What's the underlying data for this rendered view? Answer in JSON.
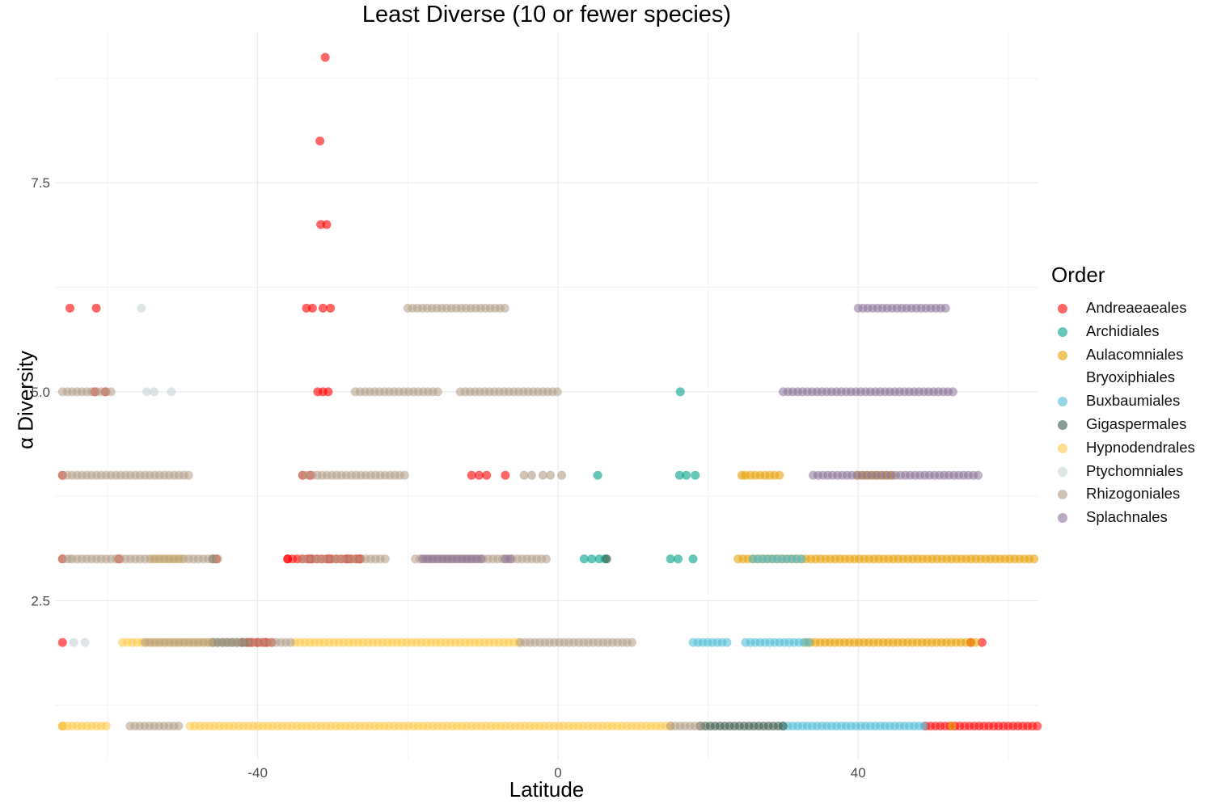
{
  "chart_data": {
    "type": "scatter",
    "title": "Least Diverse (10 or fewer species)",
    "xlabel": "Latitude",
    "ylabel": "α Diversity",
    "xlim": [
      -67,
      64
    ],
    "ylim": [
      0.6,
      9.3
    ],
    "x_ticks": [
      -40,
      0,
      40
    ],
    "x_tick_labels": [
      "-40",
      "0",
      "40"
    ],
    "y_ticks": [
      2.5,
      5.0,
      7.5
    ],
    "y_tick_labels": [
      "2.5",
      "5.0",
      "7.5"
    ],
    "grid": true,
    "legend": {
      "title": "Order",
      "position": "right",
      "entries": [
        "Andreaeaeales",
        "Archidiales",
        "Aulacomniales",
        "Bryoxiphiales",
        "Buxbaumiales",
        "Gigaspermales",
        "Hypnodendrales",
        "Ptychomniales",
        "Rhizogoniales",
        "Splachnales"
      ]
    },
    "series": [
      {
        "name": "Andreaeaeales",
        "color": "#FF0000",
        "points": [
          [
            -31,
            9
          ],
          [
            -31.7,
            8
          ],
          [
            -31.6,
            7
          ],
          [
            -30.8,
            7
          ],
          [
            -65,
            6
          ],
          [
            -61.5,
            6
          ],
          [
            -33.5,
            6
          ],
          [
            -32.7,
            6
          ],
          [
            -31.3,
            6
          ],
          [
            -30.3,
            6
          ],
          [
            -32,
            5
          ],
          [
            -31.3,
            5
          ],
          [
            -30.6,
            5
          ],
          [
            -61.7,
            5
          ],
          [
            -60.3,
            5
          ],
          [
            -66,
            4
          ],
          [
            -34,
            4
          ],
          [
            -33,
            4
          ],
          [
            -11.5,
            4
          ],
          [
            -10.5,
            4
          ],
          [
            -9.5,
            4
          ],
          [
            -7,
            4
          ],
          [
            -66,
            3
          ],
          [
            -58.5,
            3
          ],
          [
            -45.5,
            3
          ],
          [
            -36,
            3
          ],
          [
            -33,
            3
          ],
          [
            -30.5,
            3
          ],
          [
            -28,
            3
          ],
          [
            -26.5,
            3
          ],
          [
            -66,
            2
          ],
          [
            -41,
            2
          ],
          [
            -40,
            2
          ],
          [
            -39,
            2
          ],
          [
            55,
            2
          ],
          [
            56.5,
            2
          ]
        ],
        "bands": [
          {
            "y": 3,
            "x": [
              -36,
              -26
            ]
          },
          {
            "y": 2,
            "x": [
              -42,
              -38
            ]
          },
          {
            "y": 1,
            "x": [
              49,
              64
            ]
          }
        ]
      },
      {
        "name": "Archidiales",
        "color": "#00A087",
        "points": [
          [
            16.3,
            5
          ],
          [
            5.3,
            4
          ],
          [
            16.2,
            4
          ],
          [
            17.1,
            4
          ],
          [
            18.3,
            4
          ],
          [
            3.5,
            3
          ],
          [
            4.5,
            3
          ],
          [
            5.5,
            3
          ],
          [
            6.3,
            3
          ],
          [
            15,
            3
          ],
          [
            16,
            3
          ],
          [
            18,
            3
          ]
        ],
        "bands": []
      },
      {
        "name": "Aulacomniales",
        "color": "#E69F00",
        "points": [
          [
            24.5,
            4
          ],
          [
            -66,
            1
          ],
          [
            52.5,
            1
          ]
        ],
        "bands": [
          {
            "y": 4,
            "x": [
              25,
              30
            ]
          },
          {
            "y": 4,
            "x": [
              40,
              45
            ]
          },
          {
            "y": 3,
            "x": [
              24,
              64
            ]
          },
          {
            "y": 2,
            "x": [
              33,
              56
            ]
          }
        ]
      },
      {
        "name": "Bryoxiphiales",
        "color": "#FFFFFF",
        "points": [],
        "bands": []
      },
      {
        "name": "Buxbaumiales",
        "color": "#4DBBD5",
        "points": [],
        "bands": [
          {
            "y": 3,
            "x": [
              26,
              33
            ]
          },
          {
            "y": 2,
            "x": [
              18,
              23
            ]
          },
          {
            "y": 2,
            "x": [
              25,
              34
            ]
          },
          {
            "y": 1,
            "x": [
              30,
              49
            ]
          }
        ]
      },
      {
        "name": "Gigaspermales",
        "color": "#3C5A4A",
        "points": [
          [
            -46,
            3
          ],
          [
            6.5,
            3
          ]
        ],
        "bands": [
          {
            "y": 2,
            "x": [
              -46,
              -41
            ]
          },
          {
            "y": 1,
            "x": [
              19,
              30
            ]
          }
        ]
      },
      {
        "name": "Hypnodendrales",
        "color": "#FFC845",
        "points": [],
        "bands": [
          {
            "y": 3,
            "x": [
              -54,
              -50
            ]
          },
          {
            "y": 2,
            "x": [
              -58,
              -46
            ]
          },
          {
            "y": 2,
            "x": [
              -35,
              -5
            ]
          },
          {
            "y": 1,
            "x": [
              -66,
              -60
            ]
          },
          {
            "y": 1,
            "x": [
              -49,
              15
            ]
          }
        ]
      },
      {
        "name": "Ptychomniales",
        "color": "#C8D4D6",
        "points": [
          [
            -55.5,
            6
          ],
          [
            -54.8,
            5
          ],
          [
            -53.8,
            5
          ],
          [
            -51.5,
            5
          ],
          [
            -65,
            3
          ],
          [
            -64.5,
            2
          ],
          [
            -63,
            2
          ]
        ],
        "bands": []
      },
      {
        "name": "Rhizogoniales",
        "color": "#B09C85",
        "points": [
          [
            -4.5,
            4
          ],
          [
            -3.5,
            4
          ],
          [
            -2,
            4
          ],
          [
            -1,
            4
          ],
          [
            0.5,
            4
          ]
        ],
        "bands": [
          {
            "y": 6,
            "x": [
              -20,
              -7
            ]
          },
          {
            "y": 5,
            "x": [
              -66,
              -59
            ]
          },
          {
            "y": 5,
            "x": [
              -27,
              -16
            ]
          },
          {
            "y": 5,
            "x": [
              -13,
              0
            ]
          },
          {
            "y": 4,
            "x": [
              -66,
              -49
            ]
          },
          {
            "y": 4,
            "x": [
              -34,
              -20
            ]
          },
          {
            "y": 3,
            "x": [
              -66,
              -45
            ]
          },
          {
            "y": 3,
            "x": [
              -34,
              -23
            ]
          },
          {
            "y": 3,
            "x": [
              -19,
              -1
            ]
          },
          {
            "y": 2,
            "x": [
              -55,
              -35
            ]
          },
          {
            "y": 2,
            "x": [
              -5,
              10
            ]
          },
          {
            "y": 1,
            "x": [
              -57,
              -50
            ]
          },
          {
            "y": 1,
            "x": [
              15,
              19
            ]
          }
        ]
      },
      {
        "name": "Splachnales",
        "color": "#8A7197",
        "points": [],
        "bands": [
          {
            "y": 6,
            "x": [
              40,
              52
            ]
          },
          {
            "y": 5,
            "x": [
              30,
              53
            ]
          },
          {
            "y": 4,
            "x": [
              34,
              56
            ]
          },
          {
            "y": 3,
            "x": [
              -18,
              -10
            ]
          },
          {
            "y": 3,
            "x": [
              -7,
              -6
            ]
          }
        ]
      }
    ]
  }
}
